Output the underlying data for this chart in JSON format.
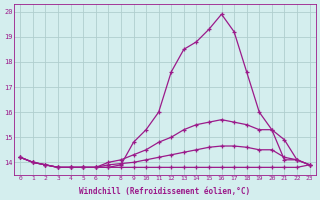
{
  "title": "",
  "xlabel": "Windchill (Refroidissement éolien,°C)",
  "x": [
    0,
    1,
    2,
    3,
    4,
    5,
    6,
    7,
    8,
    9,
    10,
    11,
    12,
    13,
    14,
    15,
    16,
    17,
    18,
    19,
    20,
    21,
    22,
    23
  ],
  "line1": [
    14.2,
    14.0,
    13.9,
    13.8,
    13.8,
    13.8,
    13.8,
    13.8,
    13.9,
    14.8,
    15.3,
    16.0,
    17.6,
    18.5,
    18.8,
    19.3,
    19.9,
    19.2,
    17.6,
    16.0,
    15.3,
    14.1,
    14.1,
    13.9
  ],
  "line2": [
    14.2,
    14.0,
    13.9,
    13.8,
    13.8,
    13.8,
    13.8,
    14.0,
    14.1,
    14.3,
    14.5,
    14.8,
    15.0,
    15.3,
    15.5,
    15.6,
    15.7,
    15.6,
    15.5,
    15.3,
    15.3,
    14.9,
    14.1,
    13.9
  ],
  "line3": [
    14.2,
    14.0,
    13.9,
    13.8,
    13.8,
    13.8,
    13.8,
    13.9,
    13.95,
    14.0,
    14.1,
    14.2,
    14.3,
    14.4,
    14.5,
    14.6,
    14.65,
    14.65,
    14.6,
    14.5,
    14.5,
    14.2,
    14.1,
    13.9
  ],
  "line4": [
    14.2,
    14.0,
    13.9,
    13.8,
    13.8,
    13.8,
    13.8,
    13.8,
    13.8,
    13.8,
    13.8,
    13.8,
    13.8,
    13.8,
    13.8,
    13.8,
    13.8,
    13.8,
    13.8,
    13.8,
    13.8,
    13.8,
    13.8,
    13.9
  ],
  "line_color": "#9b1a8a",
  "bg_color": "#d4eeee",
  "grid_color": "#b0cece",
  "ylim": [
    13.5,
    20.3
  ],
  "yticks": [
    14,
    15,
    16,
    17,
    18,
    19,
    20
  ],
  "xticks": [
    0,
    1,
    2,
    3,
    4,
    5,
    6,
    7,
    8,
    9,
    10,
    11,
    12,
    13,
    14,
    15,
    16,
    17,
    18,
    19,
    20,
    21,
    22,
    23
  ],
  "marker": "+",
  "markersize": 3,
  "linewidth": 0.9
}
